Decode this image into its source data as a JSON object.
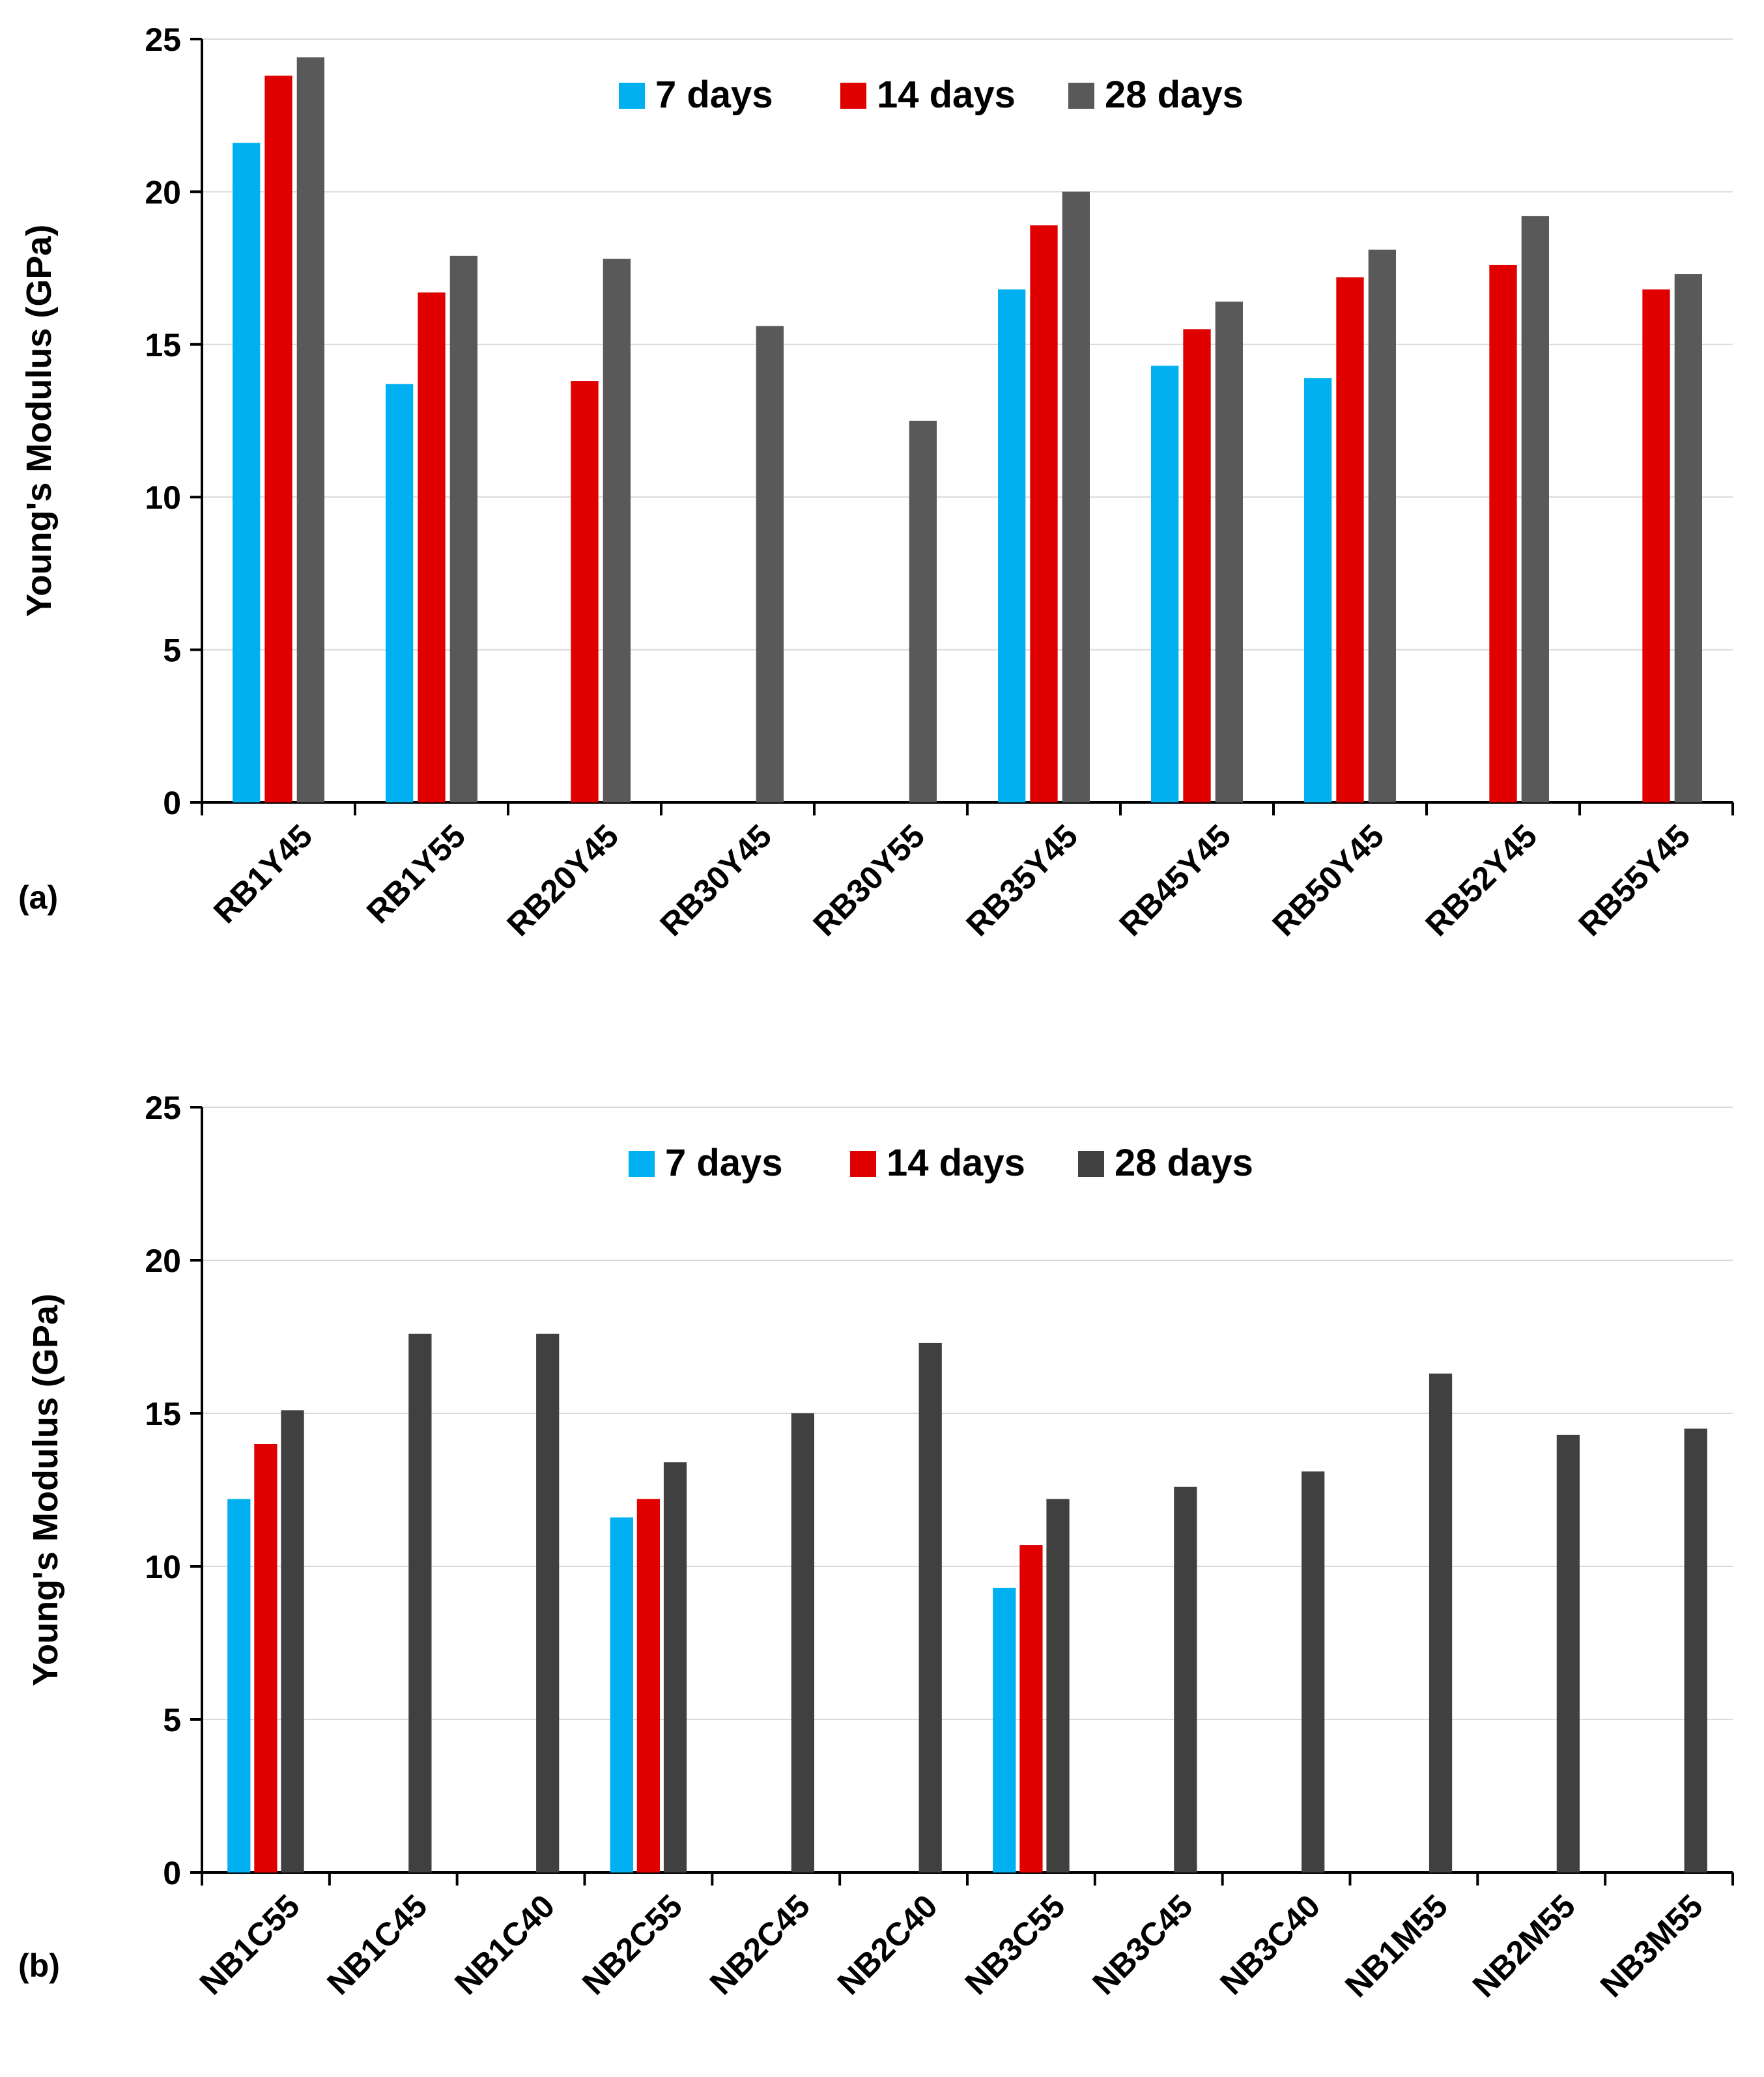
{
  "chart_data": [
    {
      "type": "bar",
      "panel_label": "(a)",
      "ylabel": "Young's Modulus (GPa)",
      "xlabel": "",
      "ylim": [
        0,
        25
      ],
      "yticks": [
        0,
        5,
        10,
        15,
        20,
        25
      ],
      "grid": "horizontal",
      "legend_position": "top-center",
      "categories": [
        "RB1Y45",
        "RB1Y55",
        "RB20Y45",
        "RB30Y45",
        "RB30Y55",
        "RB35Y45",
        "RB45Y45",
        "RB50Y45",
        "RB52Y45",
        "RB55Y45"
      ],
      "series": [
        {
          "name": "7 days",
          "color": "#00B0F0",
          "values": [
            21.6,
            13.7,
            null,
            null,
            null,
            16.8,
            14.3,
            13.9,
            null,
            null
          ]
        },
        {
          "name": "14 days",
          "color": "#E00000",
          "values": [
            23.8,
            16.7,
            13.8,
            null,
            null,
            18.9,
            15.5,
            17.2,
            17.6,
            16.8
          ]
        },
        {
          "name": "28 days",
          "color": "#595959",
          "values": [
            24.4,
            17.9,
            17.8,
            15.6,
            12.5,
            20.0,
            16.4,
            18.1,
            19.2,
            17.3
          ]
        }
      ]
    },
    {
      "type": "bar",
      "panel_label": "(b)",
      "ylabel": "Young's Modulus (GPa)",
      "xlabel": "",
      "ylim": [
        0,
        25
      ],
      "yticks": [
        0,
        5,
        10,
        15,
        20,
        25
      ],
      "grid": "horizontal",
      "legend_position": "top-center",
      "categories": [
        "NB1C55",
        "NB1C45",
        "NB1C40",
        "NB2C55",
        "NB2C45",
        "NB2C40",
        "NB3C55",
        "NB3C45",
        "NB3C40",
        "NB1M55",
        "NB2M55",
        "NB3M55"
      ],
      "series": [
        {
          "name": "7 days",
          "color": "#00B0F0",
          "values": [
            12.2,
            null,
            null,
            11.6,
            null,
            null,
            9.3,
            null,
            null,
            null,
            null,
            null
          ]
        },
        {
          "name": "14 days",
          "color": "#E00000",
          "values": [
            14.0,
            null,
            null,
            12.2,
            null,
            null,
            10.7,
            null,
            null,
            null,
            null,
            null
          ]
        },
        {
          "name": "28 days",
          "color": "#404040",
          "values": [
            15.1,
            17.6,
            17.6,
            13.4,
            15.0,
            17.3,
            12.2,
            12.6,
            13.1,
            16.3,
            14.3,
            14.5
          ]
        }
      ]
    }
  ]
}
